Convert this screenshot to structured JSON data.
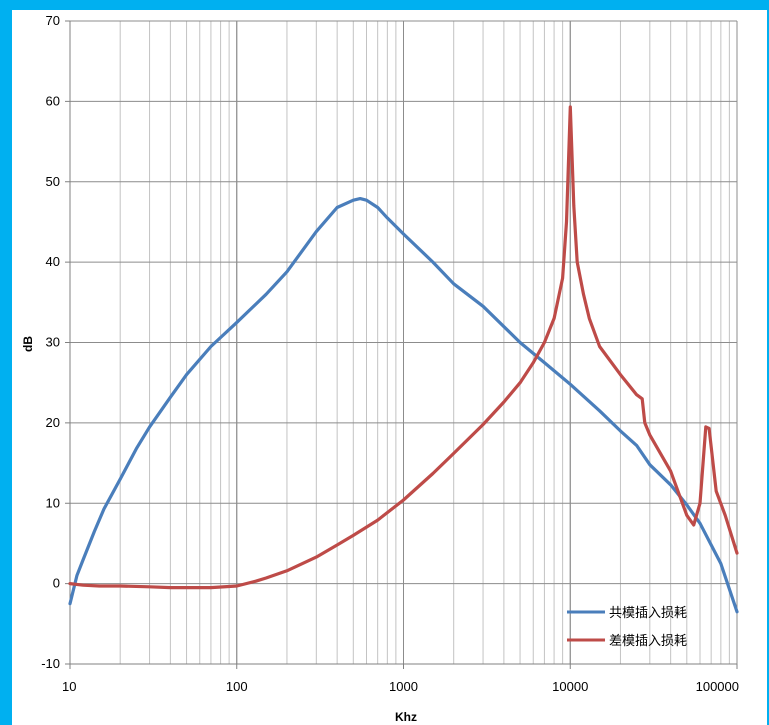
{
  "chart_data": {
    "type": "line",
    "title": "",
    "xlabel": "Khz",
    "ylabel": "dB",
    "x_scale": "log",
    "xlim": [
      10,
      100000
    ],
    "ylim": [
      -10,
      70
    ],
    "x_ticks": [
      "10",
      "100",
      "1000",
      "10000",
      "100000"
    ],
    "y_ticks": [
      "-10",
      "0",
      "10",
      "20",
      "30",
      "40",
      "50",
      "60",
      "70"
    ],
    "grid": true,
    "legend_position": "bottom-right",
    "series": [
      {
        "name": "共模插入损耗",
        "color": "#4a7ebb",
        "x": [
          10,
          11,
          12,
          14,
          16,
          20,
          25,
          30,
          40,
          50,
          70,
          100,
          150,
          200,
          300,
          400,
          500,
          550,
          600,
          700,
          800,
          1000,
          1500,
          2000,
          3000,
          5000,
          7000,
          10000,
          15000,
          20000,
          25000,
          30000,
          40000,
          50000,
          60000,
          70000,
          80000,
          100000
        ],
        "values": [
          -2.5,
          1,
          3,
          6.5,
          9.3,
          13,
          16.8,
          19.5,
          23.2,
          26,
          29.5,
          32.5,
          36,
          38.8,
          43.8,
          46.8,
          47.7,
          47.9,
          47.7,
          46.8,
          45.5,
          43.5,
          40,
          37.3,
          34.5,
          30,
          27.5,
          24.8,
          21.5,
          19,
          17.2,
          14.8,
          12.3,
          9.8,
          7.5,
          4.8,
          2.5,
          -3.5
        ]
      },
      {
        "name": "差模插入损耗",
        "color": "#be4b48",
        "x": [
          10,
          12,
          15,
          20,
          30,
          40,
          50,
          70,
          100,
          130,
          150,
          200,
          300,
          400,
          500,
          700,
          1000,
          1500,
          2000,
          3000,
          4000,
          5000,
          6000,
          7000,
          8000,
          9000,
          9500,
          10000,
          10500,
          11000,
          12000,
          13000,
          15000,
          20000,
          25000,
          27000,
          28000,
          30000,
          40000,
          50000,
          55000,
          60000,
          65000,
          68000,
          75000,
          85000,
          100000
        ],
        "values": [
          0,
          -0.2,
          -0.3,
          -0.3,
          -0.4,
          -0.5,
          -0.5,
          -0.5,
          -0.3,
          0.3,
          0.7,
          1.6,
          3.3,
          4.8,
          6.0,
          7.9,
          10.4,
          13.7,
          16.2,
          19.8,
          22.6,
          25.0,
          27.5,
          30.0,
          33.0,
          38.0,
          45.0,
          59.3,
          47.0,
          40.0,
          36.0,
          33.0,
          29.5,
          26.0,
          23.5,
          23.0,
          20.0,
          18.5,
          14.0,
          8.5,
          7.3,
          10.0,
          19.5,
          19.3,
          11.5,
          8.5,
          3.8
        ]
      }
    ]
  }
}
